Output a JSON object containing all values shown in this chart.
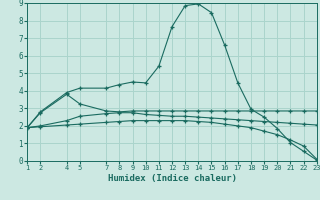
{
  "xlabel": "Humidex (Indice chaleur)",
  "bg_color": "#cce8e2",
  "grid_color": "#aad4cc",
  "line_color": "#1a6b60",
  "xlim": [
    1,
    23
  ],
  "ylim": [
    0,
    9
  ],
  "xticks": [
    1,
    2,
    4,
    5,
    7,
    8,
    9,
    10,
    11,
    12,
    13,
    14,
    15,
    16,
    17,
    18,
    19,
    20,
    21,
    22,
    23
  ],
  "yticks": [
    0,
    1,
    2,
    3,
    4,
    5,
    6,
    7,
    8,
    9
  ],
  "line1_x": [
    1,
    2,
    4,
    5,
    7,
    8,
    9,
    10,
    11,
    12,
    13,
    14,
    15,
    16,
    17,
    18,
    19,
    20,
    21,
    22,
    23
  ],
  "line1_y": [
    1.9,
    2.8,
    3.9,
    4.15,
    4.15,
    4.35,
    4.5,
    4.45,
    5.4,
    7.65,
    8.85,
    8.95,
    8.45,
    6.6,
    4.45,
    2.95,
    2.5,
    1.85,
    1.05,
    0.55,
    0.05
  ],
  "line2_x": [
    1,
    2,
    4,
    5,
    7,
    8,
    9,
    10,
    11,
    12,
    13,
    14,
    15,
    16,
    17,
    18,
    19,
    20,
    21,
    22,
    23
  ],
  "line2_y": [
    1.9,
    2.75,
    3.8,
    3.25,
    2.85,
    2.8,
    2.85,
    2.85,
    2.85,
    2.85,
    2.85,
    2.85,
    2.85,
    2.85,
    2.85,
    2.85,
    2.85,
    2.85,
    2.85,
    2.85,
    2.85
  ],
  "line3_x": [
    1,
    2,
    4,
    5,
    7,
    8,
    9,
    10,
    11,
    12,
    13,
    14,
    15,
    16,
    17,
    18,
    19,
    20,
    21,
    22,
    23
  ],
  "line3_y": [
    1.9,
    2.0,
    2.3,
    2.55,
    2.7,
    2.75,
    2.75,
    2.65,
    2.6,
    2.55,
    2.55,
    2.5,
    2.45,
    2.4,
    2.35,
    2.3,
    2.25,
    2.2,
    2.15,
    2.1,
    2.05
  ],
  "line4_x": [
    1,
    2,
    4,
    5,
    7,
    8,
    9,
    10,
    11,
    12,
    13,
    14,
    15,
    16,
    17,
    18,
    19,
    20,
    21,
    22,
    23
  ],
  "line4_y": [
    1.9,
    1.95,
    2.05,
    2.1,
    2.2,
    2.25,
    2.3,
    2.3,
    2.3,
    2.3,
    2.3,
    2.25,
    2.2,
    2.1,
    2.0,
    1.9,
    1.7,
    1.5,
    1.2,
    0.85,
    0.1
  ]
}
